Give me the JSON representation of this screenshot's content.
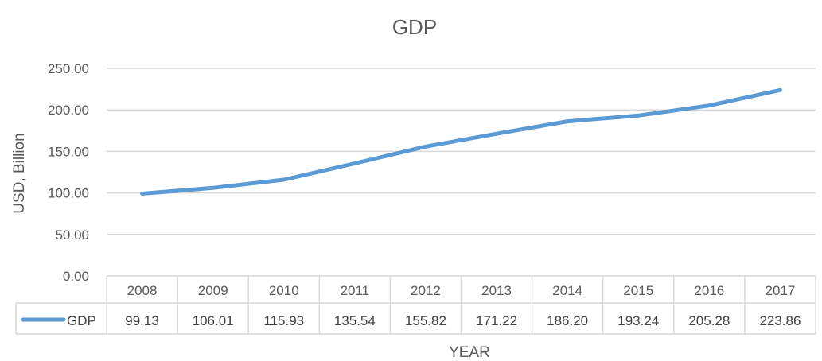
{
  "chart_data": {
    "type": "line",
    "title": "GDP",
    "xlabel": "YEAR",
    "ylabel": "USD, Billion",
    "categories": [
      "2008",
      "2009",
      "2010",
      "2011",
      "2012",
      "2013",
      "2014",
      "2015",
      "2016",
      "2017"
    ],
    "y_ticks": [
      "0.00",
      "50.00",
      "100.00",
      "150.00",
      "200.00",
      "250.00"
    ],
    "ylim": [
      0,
      250
    ],
    "grid": true,
    "legend": "data-table",
    "series": [
      {
        "name": "GDP",
        "color": "#5B9BD5",
        "values": [
          99.13,
          106.01,
          115.93,
          135.54,
          155.82,
          171.22,
          186.2,
          193.24,
          205.28,
          223.86
        ],
        "labels": [
          "99.13",
          "106.01",
          "115.93",
          "135.54",
          "155.82",
          "171.22",
          "186.20",
          "193.24",
          "205.28",
          "223.86"
        ]
      }
    ]
  }
}
